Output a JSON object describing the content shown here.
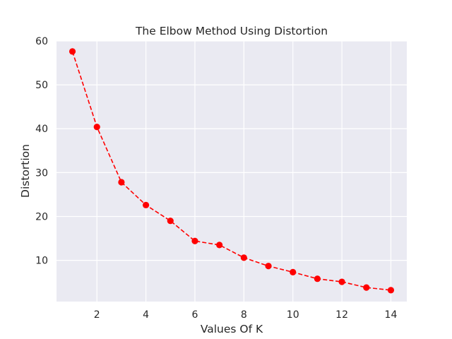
{
  "chart_data": {
    "type": "line",
    "title": "The Elbow Method Using Distortion",
    "xlabel": "Values Of K",
    "ylabel": "Distortion",
    "x": [
      1,
      2,
      3,
      4,
      5,
      6,
      7,
      8,
      9,
      10,
      11,
      12,
      13,
      14
    ],
    "series": [
      {
        "values": [
          57.6,
          40.4,
          27.8,
          22.6,
          19.0,
          14.4,
          13.5,
          10.6,
          8.7,
          7.3,
          5.8,
          5.1,
          3.8,
          3.2
        ],
        "color": "#ff0000",
        "line_style": "dashed",
        "marker": "circle"
      }
    ],
    "xlim": [
      0.35,
      14.65
    ],
    "ylim": [
      0.6,
      60
    ],
    "xticks": [
      2,
      4,
      6,
      8,
      10,
      12,
      14
    ],
    "yticks": [
      10,
      20,
      30,
      40,
      50,
      60
    ],
    "grid": true,
    "background_color": "#eaeaf2",
    "grid_color": "#ffffff"
  }
}
